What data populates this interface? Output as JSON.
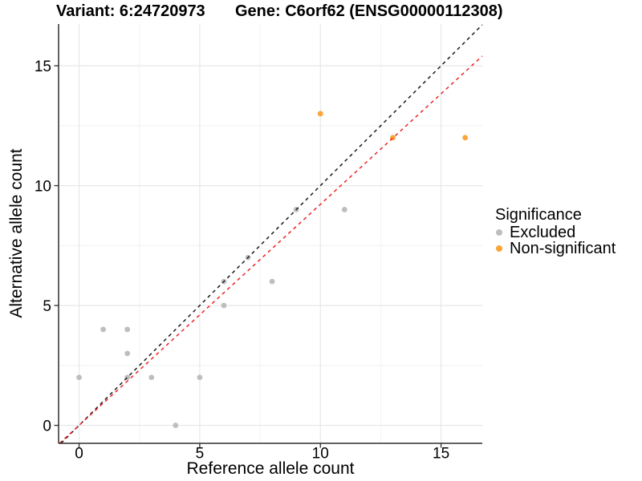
{
  "chart_data": {
    "type": "scatter",
    "title_left": "Variant: 6:24720973",
    "title_right": "Gene: C6orf62 (ENSG00000112308)",
    "xlabel": "Reference allele count",
    "ylabel": "Alternative allele count",
    "xlim": [
      -0.85,
      16.71
    ],
    "ylim": [
      -0.75,
      16.74
    ],
    "x_ticks": [
      0,
      5,
      10,
      15
    ],
    "y_ticks": [
      0,
      5,
      10,
      15
    ],
    "x_minor": [
      2.5,
      7.5,
      12.5
    ],
    "y_minor": [
      2.5,
      7.5,
      12.5
    ],
    "grid": true,
    "colors": {
      "major_grid": "#E5E5E5",
      "minor_grid": "#F0F0F0",
      "axis": "#2E2E2E",
      "identity_line": "#1A1A1A",
      "ratio_line": "#EE2222"
    },
    "series": [
      {
        "name": "Excluded",
        "color": "#BEBEBE",
        "points": [
          [
            0,
            2
          ],
          [
            1,
            4
          ],
          [
            2,
            2
          ],
          [
            2,
            3
          ],
          [
            2,
            4
          ],
          [
            3,
            2
          ],
          [
            4,
            0
          ],
          [
            5,
            2
          ],
          [
            6,
            5
          ],
          [
            6,
            6
          ],
          [
            7,
            7
          ],
          [
            8,
            6
          ],
          [
            9,
            9
          ],
          [
            11,
            9
          ]
        ]
      },
      {
        "name": "Non-significant",
        "color": "#FAA43A",
        "points": [
          [
            10,
            13
          ],
          [
            13,
            12
          ],
          [
            16,
            12
          ]
        ]
      }
    ],
    "lines": [
      {
        "name": "identity-line",
        "slope": 1,
        "intercept": 0,
        "color": "#1A1A1A",
        "dash": "4.3 4.3"
      },
      {
        "name": "ratio-line",
        "slope": 0.922,
        "intercept": 0,
        "color": "#EE2222",
        "dash": "4.3 4.3"
      }
    ],
    "legend": {
      "title": "Significance",
      "position": "right",
      "entries": [
        {
          "label": "Excluded",
          "color": "#BEBEBE"
        },
        {
          "label": "Non-significant",
          "color": "#FAA43A"
        }
      ]
    }
  }
}
